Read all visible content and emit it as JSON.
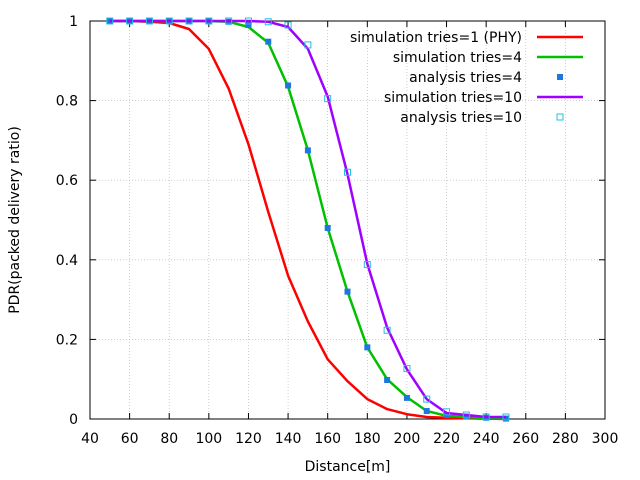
{
  "chart_data": {
    "type": "line",
    "title": "",
    "xlabel": "Distance[m]",
    "ylabel": "PDR(packed delivery ratio)",
    "xlim": [
      40,
      300
    ],
    "ylim": [
      0,
      1
    ],
    "xticks": [
      40,
      60,
      80,
      100,
      120,
      140,
      160,
      180,
      200,
      220,
      240,
      260,
      280,
      300
    ],
    "yticks": [
      0,
      0.2,
      0.4,
      0.6,
      0.8,
      1
    ],
    "ytick_labels": [
      "0",
      "0.2",
      "0.4",
      "0.6",
      "0.8",
      "1"
    ],
    "grid": true,
    "legend_position": "top-right",
    "series": [
      {
        "name": "simulation tries=1 (PHY)",
        "kind": "line",
        "color": "#ff0000",
        "x": [
          50,
          60,
          70,
          80,
          90,
          100,
          110,
          120,
          130,
          140,
          150,
          160,
          170,
          180,
          190,
          200,
          210,
          220,
          230,
          240,
          250
        ],
        "y": [
          1.0,
          1.0,
          0.998,
          0.995,
          0.98,
          0.93,
          0.83,
          0.69,
          0.52,
          0.36,
          0.245,
          0.15,
          0.095,
          0.05,
          0.025,
          0.012,
          0.005,
          0.003,
          0.002,
          0.001,
          0.0
        ]
      },
      {
        "name": "simulation tries=4",
        "kind": "line",
        "color": "#00c000",
        "x": [
          50,
          60,
          70,
          80,
          90,
          100,
          110,
          120,
          130,
          140,
          150,
          160,
          170,
          180,
          190,
          200,
          210,
          220,
          230,
          240,
          250
        ],
        "y": [
          1.0,
          1.0,
          1.0,
          1.0,
          1.0,
          1.0,
          0.998,
          0.985,
          0.945,
          0.835,
          0.675,
          0.48,
          0.32,
          0.18,
          0.1,
          0.055,
          0.02,
          0.008,
          0.005,
          0.002,
          0.001
        ]
      },
      {
        "name": "analysis tries=4",
        "kind": "scatter",
        "marker": "filled-square",
        "color": "#1e78dc",
        "x": [
          50,
          60,
          70,
          80,
          90,
          100,
          110,
          120,
          130,
          140,
          150,
          160,
          170,
          180,
          190,
          200,
          210,
          220,
          230,
          240,
          250
        ],
        "y": [
          1.0,
          1.0,
          1.0,
          1.0,
          1.0,
          1.0,
          0.998,
          0.99,
          0.948,
          0.838,
          0.675,
          0.48,
          0.32,
          0.18,
          0.098,
          0.053,
          0.02,
          0.01,
          0.006,
          0.003,
          0.001
        ]
      },
      {
        "name": "simulation tries=10",
        "kind": "line",
        "color": "#a000ff",
        "x": [
          50,
          60,
          70,
          80,
          90,
          100,
          110,
          120,
          130,
          140,
          150,
          160,
          170,
          180,
          190,
          200,
          210,
          220,
          230,
          240,
          250
        ],
        "y": [
          1.0,
          1.0,
          1.0,
          1.0,
          1.0,
          1.0,
          1.0,
          1.0,
          0.998,
          0.985,
          0.93,
          0.81,
          0.615,
          0.39,
          0.23,
          0.125,
          0.05,
          0.015,
          0.01,
          0.005,
          0.005
        ]
      },
      {
        "name": "analysis tries=10",
        "kind": "scatter",
        "marker": "open-square",
        "color": "#20c0e0",
        "x": [
          50,
          60,
          70,
          80,
          90,
          100,
          110,
          120,
          130,
          140,
          150,
          160,
          170,
          180,
          190,
          200,
          210,
          220,
          230,
          240,
          250
        ],
        "y": [
          1.0,
          1.0,
          1.0,
          1.0,
          1.0,
          1.0,
          1.0,
          1.0,
          0.998,
          0.99,
          0.94,
          0.805,
          0.62,
          0.388,
          0.223,
          0.127,
          0.05,
          0.018,
          0.01,
          0.005,
          0.005
        ]
      }
    ]
  }
}
